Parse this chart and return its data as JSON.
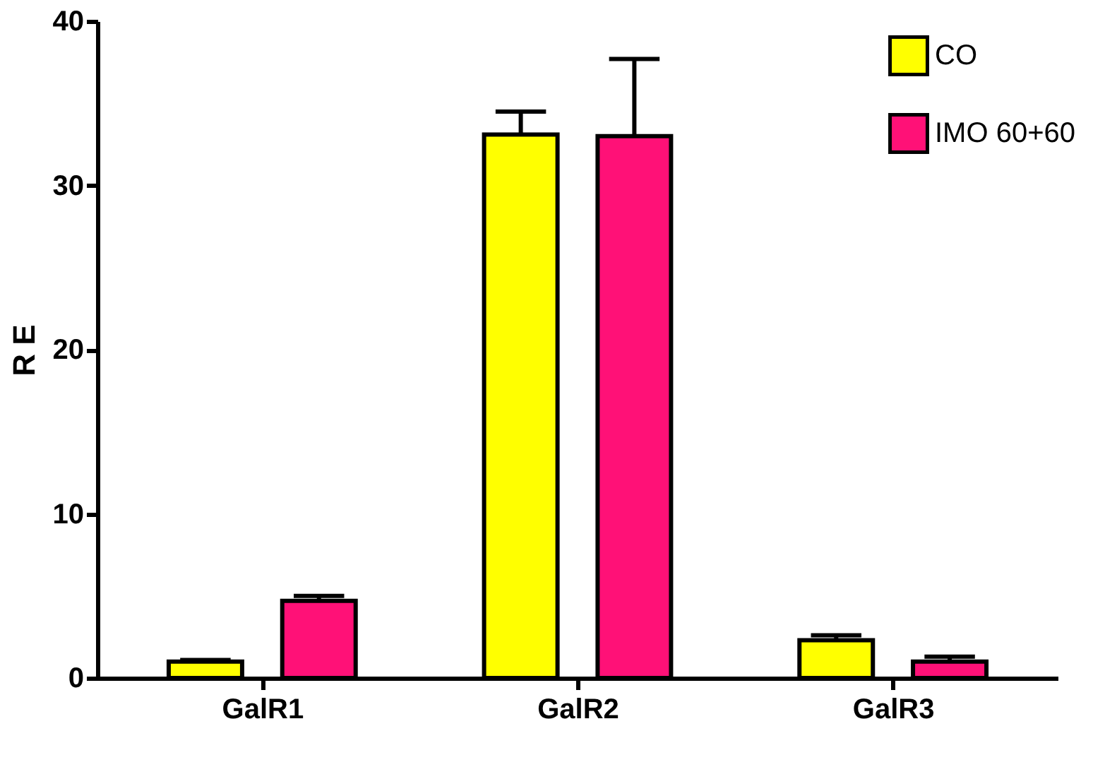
{
  "chart_data": {
    "type": "bar",
    "ylabel": "R E",
    "categories": [
      "GalR1",
      "GalR2",
      "GalR3"
    ],
    "series": [
      {
        "name": "CO",
        "color": "#ffff00",
        "values": [
          1.0,
          33.1,
          2.3
        ],
        "errors": [
          [
            1.0,
            1.1
          ],
          [
            33.1,
            34.5
          ],
          [
            2.3,
            2.6
          ]
        ]
      },
      {
        "name": "IMO 60+60",
        "color": "#ff1177",
        "values": [
          4.7,
          33.0,
          1.0
        ],
        "errors": [
          [
            4.7,
            5.0
          ],
          [
            33.0,
            37.7
          ],
          [
            1.0,
            1.3
          ]
        ]
      }
    ],
    "ylim": [
      0,
      40
    ],
    "yticks": [
      0,
      10,
      20,
      30,
      40
    ],
    "grid": false,
    "legend": "top right"
  }
}
